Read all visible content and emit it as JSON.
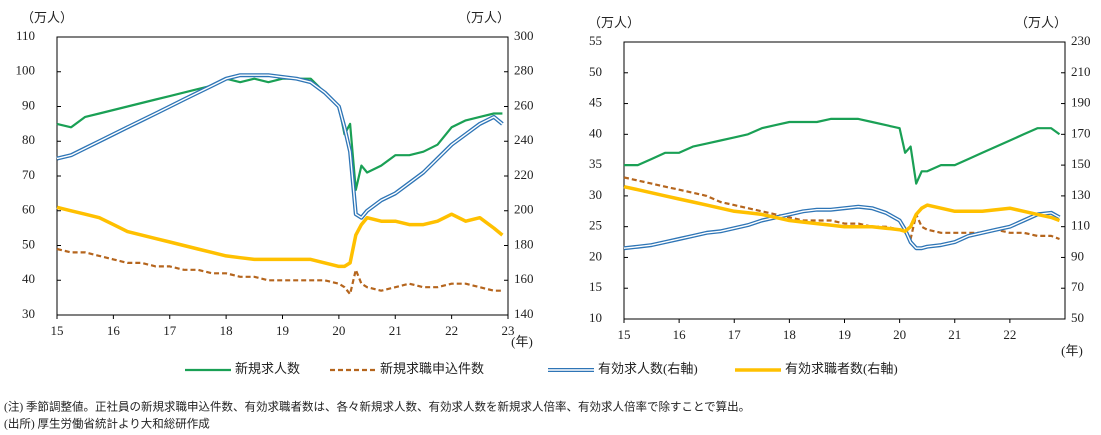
{
  "chart_data": [
    {
      "type": "line",
      "y_unit": "（万人）",
      "y2_unit": "（万人）",
      "x_unit": "(年)",
      "x": [
        15,
        15.25,
        15.5,
        15.75,
        16,
        16.25,
        16.5,
        16.75,
        17,
        17.25,
        17.5,
        17.75,
        18,
        18.25,
        18.5,
        18.75,
        19,
        19.25,
        19.5,
        19.75,
        20,
        20.1,
        20.2,
        20.3,
        20.4,
        20.5,
        20.75,
        21,
        21.25,
        21.5,
        21.75,
        22,
        22.25,
        22.5,
        22.75,
        22.9
      ],
      "xlim": [
        15,
        23
      ],
      "xticks": [
        15,
        16,
        17,
        18,
        19,
        20,
        21,
        22,
        23
      ],
      "ylim": [
        30,
        110
      ],
      "yticks": [
        30,
        40,
        50,
        60,
        70,
        80,
        90,
        100,
        110
      ],
      "y2lim": [
        140,
        300
      ],
      "y2ticks": [
        140,
        160,
        180,
        200,
        220,
        240,
        260,
        280,
        300
      ],
      "series": [
        {
          "name": "新規求人数",
          "color": "#1aa055",
          "line_style": "solid",
          "values": [
            85,
            84,
            87,
            88,
            89,
            90,
            91,
            92,
            93,
            94,
            95,
            96,
            98,
            97,
            98,
            97,
            98,
            98,
            98,
            94,
            90,
            82,
            85,
            66,
            73,
            71,
            73,
            76,
            76,
            77,
            79,
            84,
            86,
            87,
            88,
            88
          ]
        },
        {
          "name": "新規求職申込件数",
          "color": "#b5651d",
          "line_style": "dashed",
          "values": [
            49,
            48,
            48,
            47,
            46,
            45,
            45,
            44,
            44,
            43,
            43,
            42,
            42,
            41,
            41,
            40,
            40,
            40,
            40,
            40,
            39,
            38,
            36,
            43,
            39,
            38,
            37,
            38,
            39,
            38,
            38,
            39,
            39,
            38,
            37,
            37
          ]
        },
        {
          "name": "有効求人数(右軸)",
          "color": "#2e75b6",
          "line_style": "double",
          "axis": "y2",
          "values": [
            230,
            232,
            236,
            240,
            244,
            248,
            252,
            256,
            260,
            264,
            268,
            272,
            276,
            278,
            278,
            278,
            277,
            276,
            274,
            268,
            260,
            248,
            234,
            198,
            196,
            200,
            206,
            210,
            216,
            222,
            230,
            238,
            244,
            250,
            254,
            250
          ]
        },
        {
          "name": "有効求職者数(右軸)",
          "color": "#ffc000",
          "line_style": "solid",
          "axis": "y2",
          "values": [
            202,
            200,
            198,
            196,
            192,
            188,
            186,
            184,
            182,
            180,
            178,
            176,
            174,
            173,
            172,
            172,
            172,
            172,
            172,
            170,
            168,
            168,
            170,
            186,
            192,
            196,
            194,
            194,
            192,
            192,
            194,
            198,
            194,
            196,
            190,
            186
          ]
        }
      ]
    },
    {
      "type": "line",
      "y_unit": "（万人）",
      "y2_unit": "（万人）",
      "x_unit": "(年)",
      "x": [
        15,
        15.25,
        15.5,
        15.75,
        16,
        16.25,
        16.5,
        16.75,
        17,
        17.25,
        17.5,
        17.75,
        18,
        18.25,
        18.5,
        18.75,
        19,
        19.25,
        19.5,
        19.75,
        20,
        20.1,
        20.2,
        20.3,
        20.4,
        20.5,
        20.75,
        21,
        21.25,
        21.5,
        21.75,
        22,
        22.25,
        22.5,
        22.75,
        22.9
      ],
      "xlim": [
        15,
        23
      ],
      "xticks": [
        15,
        16,
        17,
        18,
        19,
        20,
        21,
        22
      ],
      "ylim": [
        10,
        55
      ],
      "yticks": [
        10,
        15,
        20,
        25,
        30,
        35,
        40,
        45,
        50,
        55
      ],
      "y2lim": [
        50,
        230
      ],
      "y2ticks": [
        50,
        70,
        90,
        110,
        130,
        150,
        170,
        190,
        210,
        230
      ],
      "series": [
        {
          "color": "#1aa055",
          "line_style": "solid",
          "values": [
            35,
            35,
            36,
            37,
            37,
            38,
            38.5,
            39,
            39.5,
            40,
            41,
            41.5,
            42,
            42,
            42,
            42.5,
            42.5,
            42.5,
            42,
            41.5,
            41,
            37,
            38,
            32,
            34,
            34,
            35,
            35,
            36,
            37,
            38,
            39,
            40,
            41,
            41,
            40
          ]
        },
        {
          "color": "#b5651d",
          "line_style": "dashed",
          "values": [
            33,
            32.5,
            32,
            31.5,
            31,
            30.5,
            30,
            29,
            28.5,
            28,
            27.5,
            27,
            26.5,
            26,
            26,
            26,
            25.5,
            25.5,
            25,
            25,
            24.5,
            24,
            23,
            27,
            25,
            24.5,
            24,
            24,
            24,
            24,
            24.5,
            24,
            24,
            23.5,
            23.5,
            23
          ]
        },
        {
          "color": "#2e75b6",
          "line_style": "double",
          "axis": "y2",
          "values": [
            96,
            97,
            98,
            100,
            102,
            104,
            106,
            107,
            109,
            111,
            114,
            116,
            118,
            120,
            121,
            121,
            122,
            123,
            122,
            119,
            114,
            108,
            100,
            96,
            96,
            97,
            98,
            100,
            104,
            106,
            108,
            110,
            114,
            118,
            119,
            116
          ]
        },
        {
          "color": "#ffc000",
          "line_style": "solid",
          "axis": "y2",
          "values": [
            136,
            134,
            132,
            130,
            128,
            126,
            124,
            122,
            120,
            119,
            118,
            116,
            114,
            113,
            112,
            111,
            110,
            110,
            110,
            109,
            108,
            107,
            110,
            118,
            122,
            124,
            122,
            120,
            120,
            120,
            121,
            122,
            120,
            118,
            116,
            114
          ]
        }
      ]
    }
  ],
  "notes": [
    "(注) 季節調整値。正社員の新規求職申込件数、有効求職者数は、各々新規求人数、有効求人数を新規求人倍率、有効求人倍率で除すことで算出。",
    "(出所) 厚生労働省統計より大和総研作成"
  ]
}
